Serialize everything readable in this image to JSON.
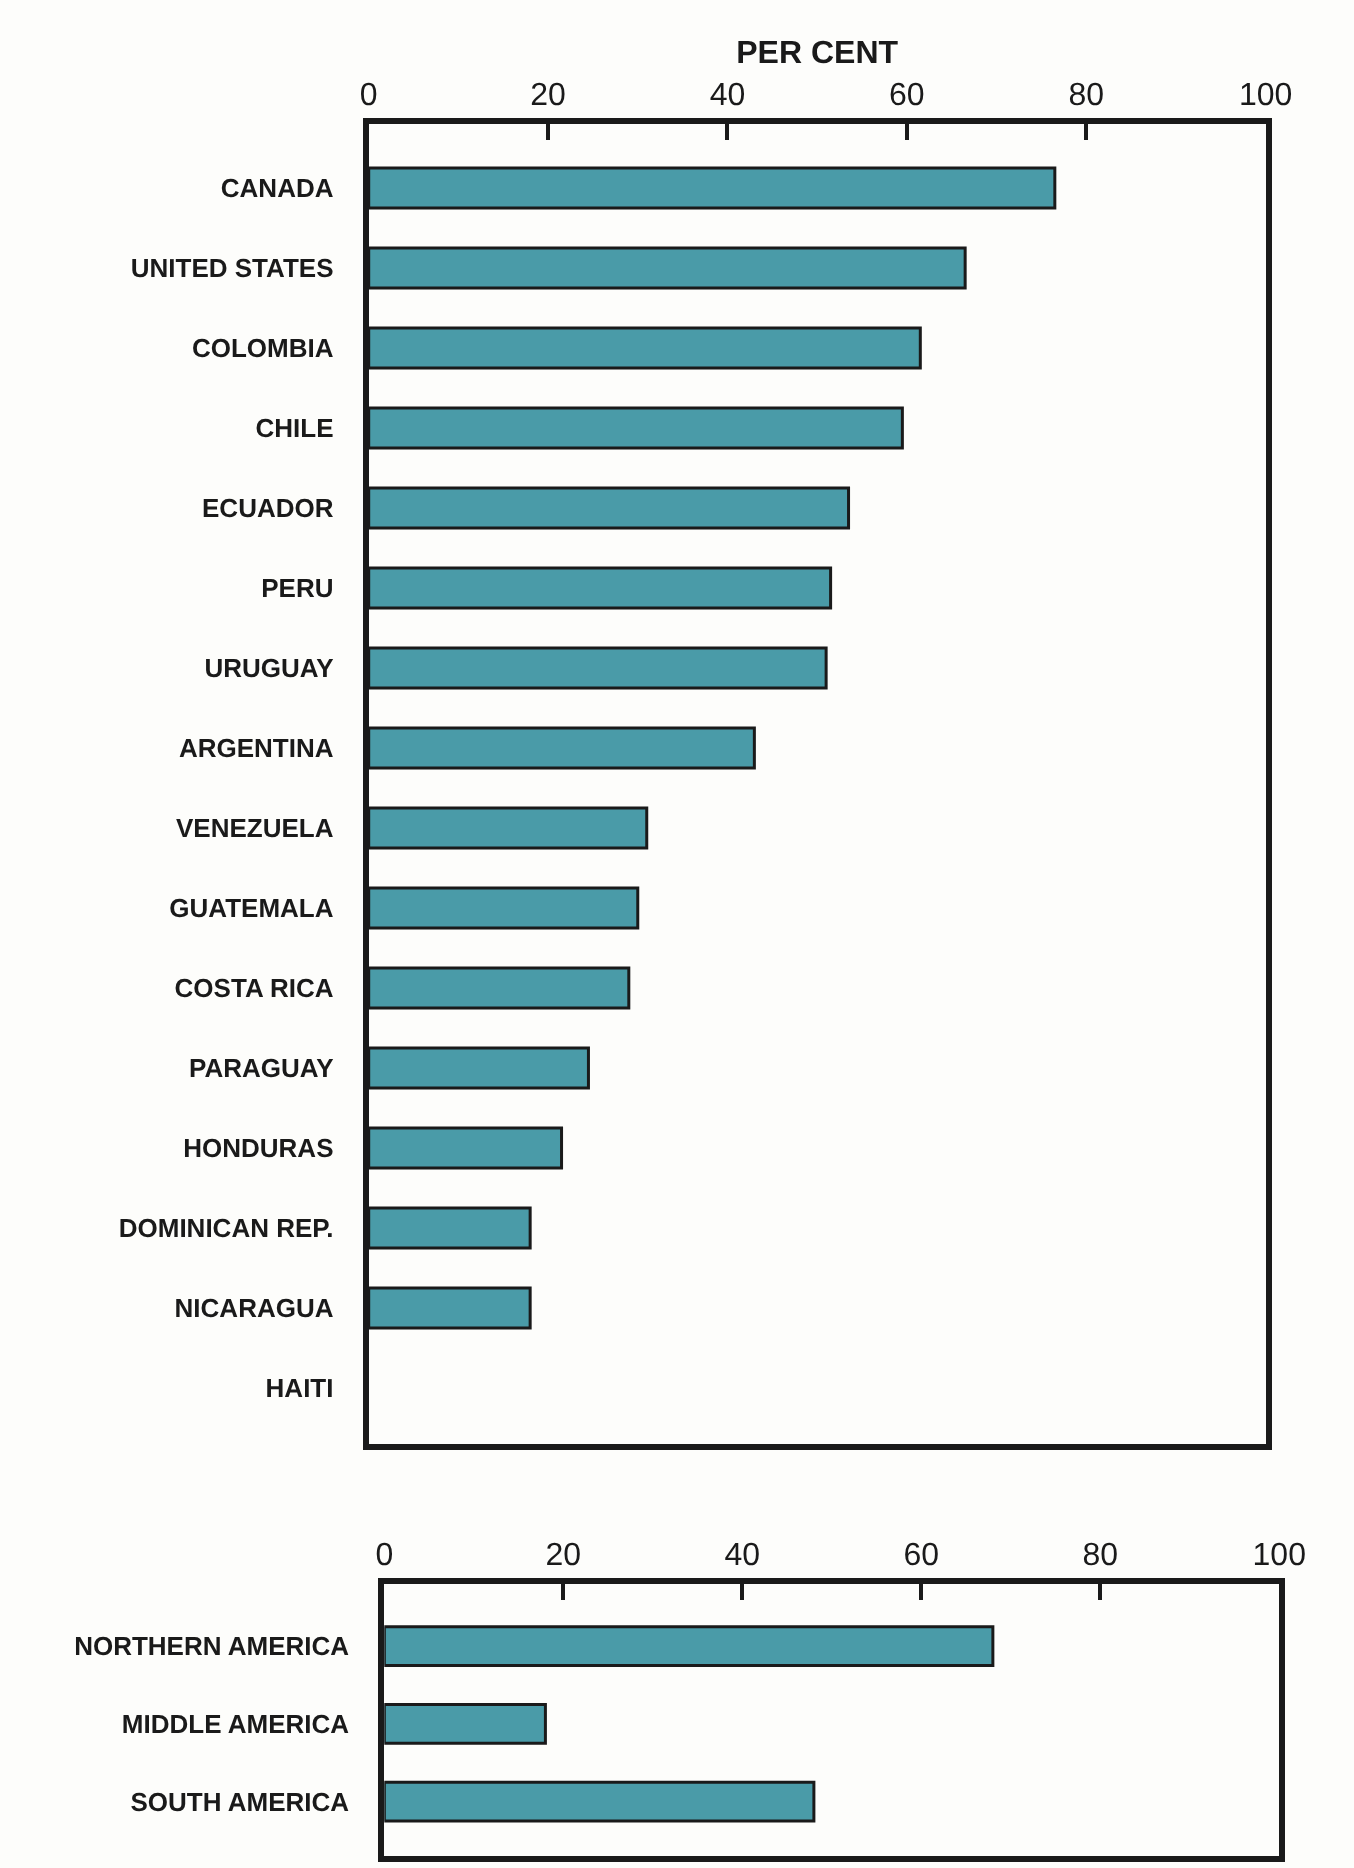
{
  "chart_data": [
    {
      "type": "bar",
      "orientation": "horizontal",
      "xlabel": "PER CENT",
      "categories": [
        "CANADA",
        "UNITED STATES",
        "COLOMBIA",
        "CHILE",
        "ECUADOR",
        "PERU",
        "URUGUAY",
        "ARGENTINA",
        "VENEZUELA",
        "GUATEMALA",
        "COSTA RICA",
        "PARAGUAY",
        "HONDURAS",
        "DOMINICAN REP.",
        "NICARAGUA",
        "HAITI"
      ],
      "values": [
        76.5,
        66.5,
        61.5,
        59.5,
        53.5,
        51.5,
        51,
        43,
        31,
        30,
        29,
        24.5,
        21.5,
        18,
        18,
        null
      ],
      "color": "#4a9ba8",
      "xlim": [
        0,
        100
      ],
      "xticks": [
        0,
        20,
        40,
        60,
        80,
        100
      ]
    },
    {
      "type": "bar",
      "orientation": "horizontal",
      "categories": [
        "NORTHERN AMERICA",
        "MIDDLE AMERICA",
        "SOUTH AMERICA"
      ],
      "values": [
        68,
        18,
        48
      ],
      "color": "#4a9ba8",
      "xlim": [
        0,
        100
      ],
      "xticks": [
        0,
        20,
        40,
        60,
        80,
        100
      ]
    }
  ]
}
